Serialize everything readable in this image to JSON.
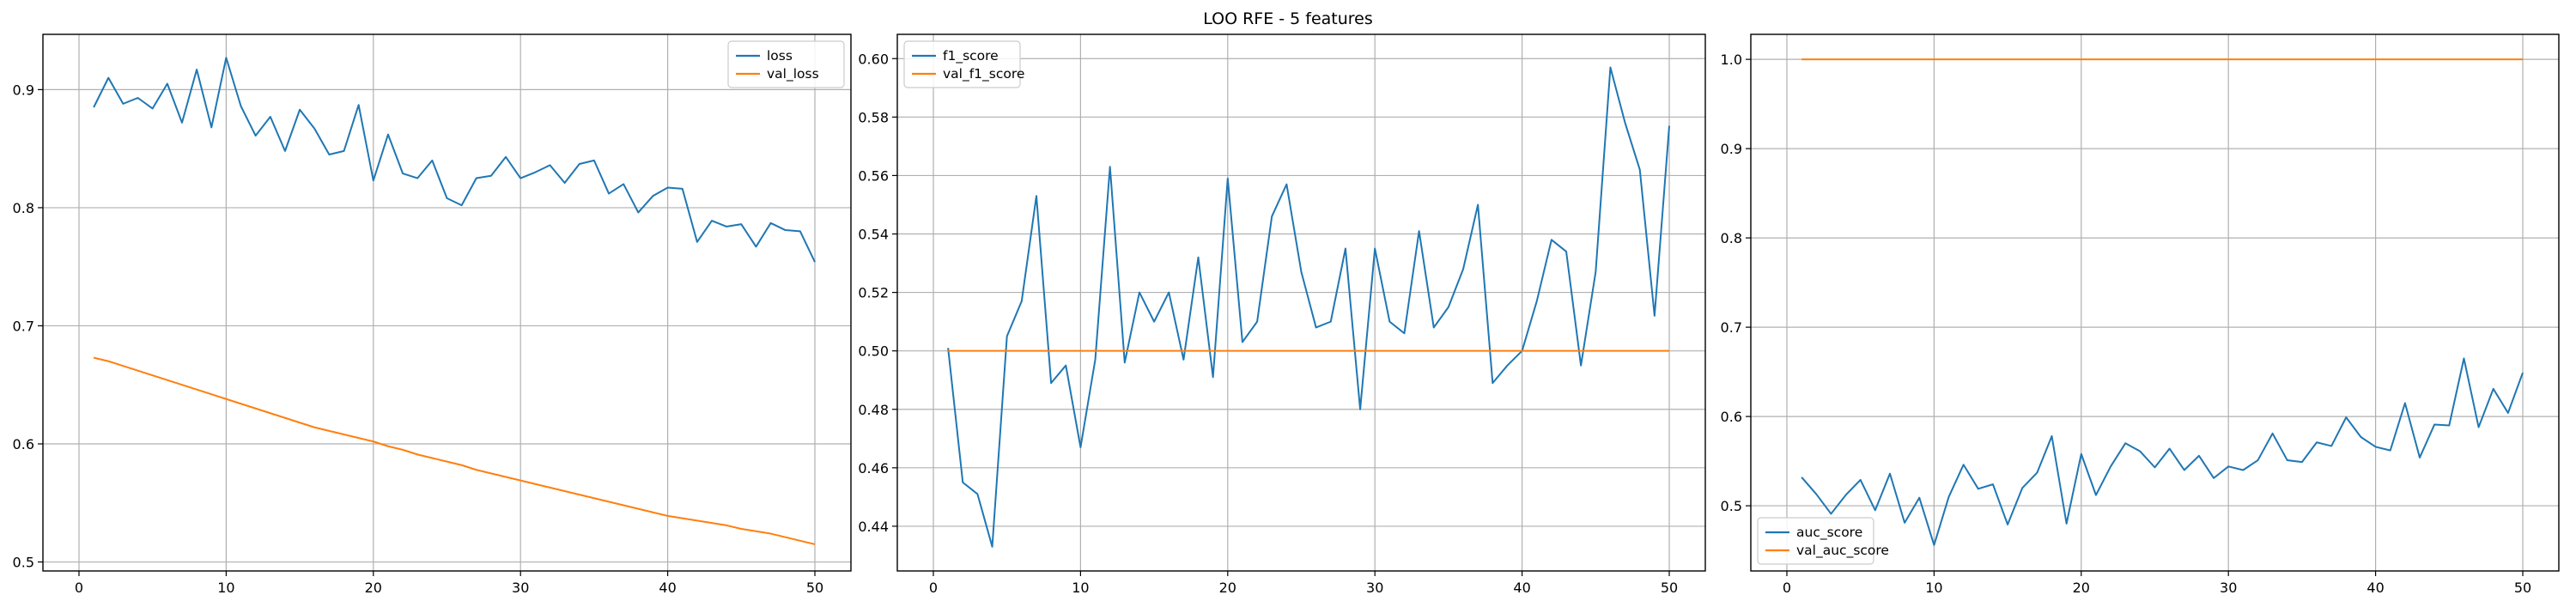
{
  "figure": {
    "title": "LOO RFE - 5 features"
  },
  "colors": {
    "series1": "#1f77b4",
    "series2": "#ff7f0e",
    "grid": "#b0b0b0",
    "axes": "#000000"
  },
  "chart_data": [
    {
      "type": "line",
      "title": "",
      "xlabel": "",
      "ylabel": "",
      "xlim": [
        -2.45,
        52.45
      ],
      "ylim": [
        0.4924,
        0.9468
      ],
      "xticks": [
        0,
        10,
        20,
        30,
        40,
        50
      ],
      "yticks": [
        0.5,
        0.6,
        0.7,
        0.8,
        0.9
      ],
      "ytick_labels": [
        "0.5",
        "0.6",
        "0.7",
        "0.8",
        "0.9"
      ],
      "grid": true,
      "legend_position": "upper right",
      "x": [
        1,
        2,
        3,
        4,
        5,
        6,
        7,
        8,
        9,
        10,
        11,
        12,
        13,
        14,
        15,
        16,
        17,
        18,
        19,
        20,
        21,
        22,
        23,
        24,
        25,
        26,
        27,
        28,
        29,
        30,
        31,
        32,
        33,
        34,
        35,
        36,
        37,
        38,
        39,
        40,
        41,
        42,
        43,
        44,
        45,
        46,
        47,
        48,
        49,
        50
      ],
      "series": [
        {
          "name": "loss",
          "values": [
            0.885,
            0.91,
            0.888,
            0.893,
            0.884,
            0.905,
            0.872,
            0.917,
            0.868,
            0.927,
            0.886,
            0.861,
            0.877,
            0.848,
            0.883,
            0.867,
            0.845,
            0.848,
            0.887,
            0.823,
            0.862,
            0.829,
            0.825,
            0.84,
            0.808,
            0.802,
            0.825,
            0.827,
            0.843,
            0.825,
            0.83,
            0.836,
            0.821,
            0.837,
            0.84,
            0.812,
            0.82,
            0.796,
            0.81,
            0.817,
            0.816,
            0.771,
            0.789,
            0.784,
            0.786,
            0.767,
            0.787,
            0.781,
            0.78,
            0.754
          ]
        },
        {
          "name": "val_loss",
          "values": [
            0.673,
            0.67,
            0.666,
            0.662,
            0.658,
            0.654,
            0.65,
            0.646,
            0.642,
            0.638,
            0.634,
            0.63,
            0.626,
            0.622,
            0.618,
            0.614,
            0.611,
            0.608,
            0.605,
            0.602,
            0.598,
            0.595,
            0.591,
            0.588,
            0.585,
            0.582,
            0.578,
            0.575,
            0.572,
            0.569,
            0.566,
            0.563,
            0.56,
            0.557,
            0.554,
            0.551,
            0.548,
            0.545,
            0.542,
            0.539,
            0.537,
            0.535,
            0.533,
            0.531,
            0.528,
            0.526,
            0.524,
            0.521,
            0.518,
            0.515
          ]
        }
      ]
    },
    {
      "type": "line",
      "title": "",
      "xlabel": "",
      "ylabel": "",
      "xlim": [
        -2.45,
        52.45
      ],
      "ylim": [
        0.4247,
        0.6083
      ],
      "xticks": [
        0,
        10,
        20,
        30,
        40,
        50
      ],
      "yticks": [
        0.44,
        0.46,
        0.48,
        0.5,
        0.52,
        0.54,
        0.56,
        0.58,
        0.6
      ],
      "ytick_labels": [
        "0.44",
        "0.46",
        "0.48",
        "0.50",
        "0.52",
        "0.54",
        "0.56",
        "0.58",
        "0.60"
      ],
      "grid": true,
      "legend_position": "upper left",
      "x": [
        1,
        2,
        3,
        4,
        5,
        6,
        7,
        8,
        9,
        10,
        11,
        12,
        13,
        14,
        15,
        16,
        17,
        18,
        19,
        20,
        21,
        22,
        23,
        24,
        25,
        26,
        27,
        28,
        29,
        30,
        31,
        32,
        33,
        34,
        35,
        36,
        37,
        38,
        39,
        40,
        41,
        42,
        43,
        44,
        45,
        46,
        47,
        48,
        49,
        50
      ],
      "series": [
        {
          "name": "f1_score",
          "values": [
            0.501,
            0.455,
            0.451,
            0.433,
            0.505,
            0.517,
            0.553,
            0.489,
            0.495,
            0.467,
            0.497,
            0.563,
            0.496,
            0.52,
            0.51,
            0.52,
            0.497,
            0.532,
            0.491,
            0.559,
            0.503,
            0.51,
            0.546,
            0.557,
            0.527,
            0.508,
            0.51,
            0.535,
            0.48,
            0.535,
            0.51,
            0.506,
            0.541,
            0.508,
            0.515,
            0.528,
            0.55,
            0.489,
            0.495,
            0.5,
            0.517,
            0.538,
            0.534,
            0.495,
            0.527,
            0.597,
            0.578,
            0.562,
            0.512,
            0.577
          ]
        },
        {
          "name": "val_f1_score",
          "values": [
            0.5,
            0.5,
            0.5,
            0.5,
            0.5,
            0.5,
            0.5,
            0.5,
            0.5,
            0.5,
            0.5,
            0.5,
            0.5,
            0.5,
            0.5,
            0.5,
            0.5,
            0.5,
            0.5,
            0.5,
            0.5,
            0.5,
            0.5,
            0.5,
            0.5,
            0.5,
            0.5,
            0.5,
            0.5,
            0.5,
            0.5,
            0.5,
            0.5,
            0.5,
            0.5,
            0.5,
            0.5,
            0.5,
            0.5,
            0.5,
            0.5,
            0.5,
            0.5,
            0.5,
            0.5,
            0.5,
            0.5,
            0.5,
            0.5,
            0.5
          ]
        }
      ]
    },
    {
      "type": "line",
      "title": "",
      "xlabel": "",
      "ylabel": "",
      "xlim": [
        -2.45,
        52.45
      ],
      "ylim": [
        0.427,
        1.028
      ],
      "xticks": [
        0,
        10,
        20,
        30,
        40,
        50
      ],
      "yticks": [
        0.5,
        0.6,
        0.7,
        0.8,
        0.9,
        1.0
      ],
      "ytick_labels": [
        "0.5",
        "0.6",
        "0.7",
        "0.8",
        "0.9",
        "1.0"
      ],
      "grid": true,
      "legend_position": "lower left",
      "x": [
        1,
        2,
        3,
        4,
        5,
        6,
        7,
        8,
        9,
        10,
        11,
        12,
        13,
        14,
        15,
        16,
        17,
        18,
        19,
        20,
        21,
        22,
        23,
        24,
        25,
        26,
        27,
        28,
        29,
        30,
        31,
        32,
        33,
        34,
        35,
        36,
        37,
        38,
        39,
        40,
        41,
        42,
        43,
        44,
        45,
        46,
        47,
        48,
        49,
        50
      ],
      "series": [
        {
          "name": "auc_score",
          "values": [
            0.532,
            0.513,
            0.491,
            0.512,
            0.529,
            0.495,
            0.536,
            0.481,
            0.509,
            0.456,
            0.51,
            0.546,
            0.519,
            0.524,
            0.479,
            0.52,
            0.537,
            0.578,
            0.48,
            0.558,
            0.512,
            0.544,
            0.57,
            0.561,
            0.543,
            0.564,
            0.54,
            0.556,
            0.531,
            0.544,
            0.54,
            0.551,
            0.581,
            0.551,
            0.549,
            0.571,
            0.567,
            0.599,
            0.577,
            0.566,
            0.562,
            0.615,
            0.554,
            0.591,
            0.59,
            0.665,
            0.588,
            0.631,
            0.604,
            0.649
          ]
        },
        {
          "name": "val_auc_score",
          "values": [
            1.0,
            1.0,
            1.0,
            1.0,
            1.0,
            1.0,
            1.0,
            1.0,
            1.0,
            1.0,
            1.0,
            1.0,
            1.0,
            1.0,
            1.0,
            1.0,
            1.0,
            1.0,
            1.0,
            1.0,
            1.0,
            1.0,
            1.0,
            1.0,
            1.0,
            1.0,
            1.0,
            1.0,
            1.0,
            1.0,
            1.0,
            1.0,
            1.0,
            1.0,
            1.0,
            1.0,
            1.0,
            1.0,
            1.0,
            1.0,
            1.0,
            1.0,
            1.0,
            1.0,
            1.0,
            1.0,
            1.0,
            1.0,
            1.0,
            1.0
          ]
        }
      ]
    }
  ]
}
